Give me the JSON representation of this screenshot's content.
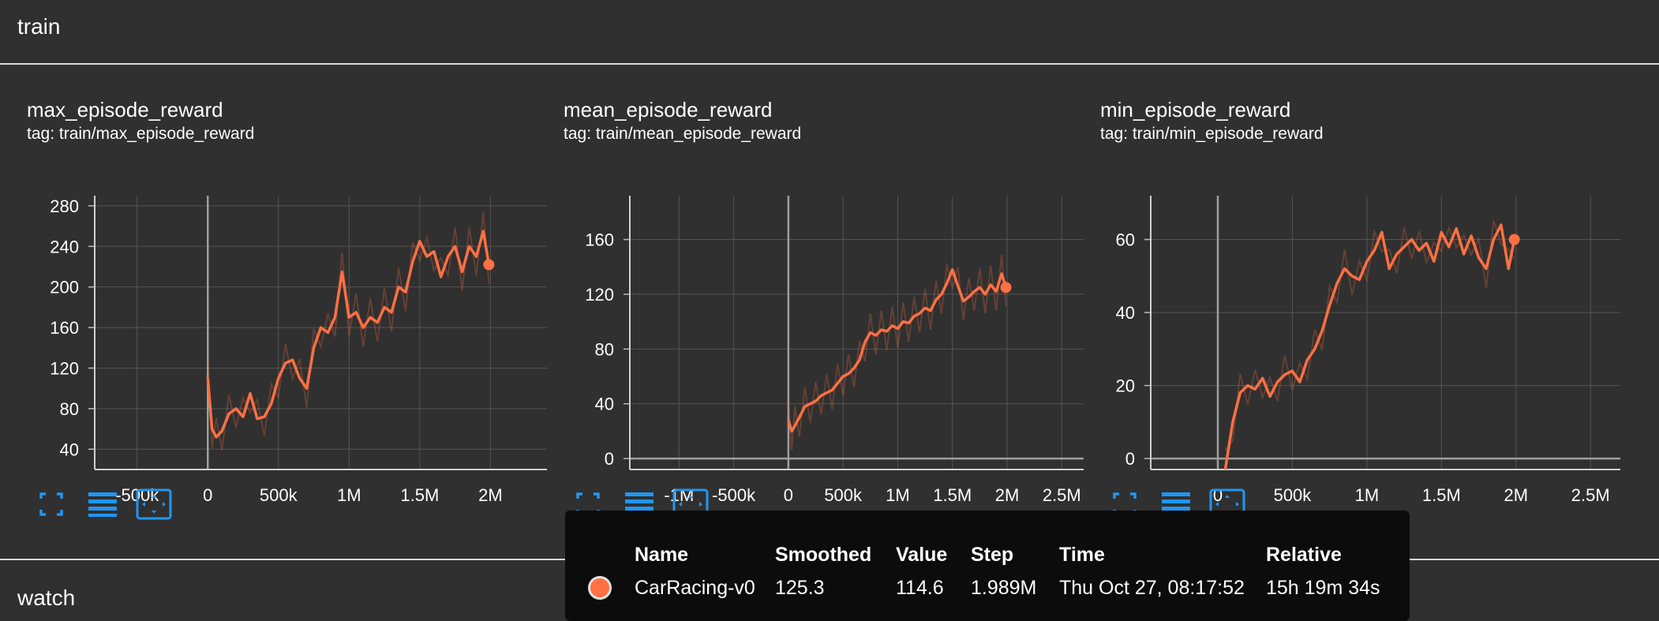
{
  "groups": {
    "train": {
      "label": "train"
    },
    "watch": {
      "label": "watch"
    }
  },
  "colors": {
    "background": "#303030",
    "accent": "#ff7043",
    "icon_blue": "#2196f3",
    "tooltip_bg": "#0c0c0c"
  },
  "cards": [
    {
      "title": "max_episode_reward",
      "tag": "tag: train/max_episode_reward"
    },
    {
      "title": "mean_episode_reward",
      "tag": "tag: train/mean_episode_reward"
    },
    {
      "title": "min_episode_reward",
      "tag": "tag: train/min_episode_reward"
    }
  ],
  "toolbar_icons": [
    "fullscreen-icon",
    "data-table-icon",
    "fit-domain-icon"
  ],
  "chart_data": [
    {
      "type": "line",
      "title": "max_episode_reward",
      "xlim": [
        -800000,
        2400000
      ],
      "ylim": [
        20,
        290
      ],
      "xticks": [
        -500000,
        0,
        500000,
        1000000,
        1500000,
        2000000
      ],
      "xtick_labels": [
        "-500k",
        "0",
        "500k",
        "1M",
        "1.5M",
        "2M"
      ],
      "yticks": [
        40,
        80,
        120,
        160,
        200,
        240,
        280
      ],
      "ytick_labels": [
        "40",
        "80",
        "120",
        "160",
        "200",
        "240",
        "280"
      ],
      "grid": true,
      "series": [
        {
          "x": [
            0,
            30000,
            60000,
            100000,
            150000,
            200000,
            250000,
            300000,
            350000,
            400000,
            450000,
            500000,
            550000,
            600000,
            650000,
            700000,
            750000,
            800000,
            850000,
            900000,
            950000,
            1000000,
            1050000,
            1100000,
            1150000,
            1200000,
            1250000,
            1300000,
            1350000,
            1400000,
            1450000,
            1500000,
            1550000,
            1600000,
            1650000,
            1700000,
            1750000,
            1800000,
            1850000,
            1900000,
            1950000,
            1989000
          ],
          "y": [
            110,
            60,
            52,
            58,
            75,
            80,
            72,
            95,
            70,
            72,
            85,
            110,
            125,
            128,
            110,
            100,
            140,
            160,
            155,
            170,
            215,
            170,
            175,
            160,
            170,
            165,
            180,
            175,
            200,
            195,
            225,
            245,
            230,
            235,
            210,
            230,
            240,
            215,
            240,
            230,
            255,
            222
          ]
        }
      ]
    },
    {
      "type": "line",
      "title": "mean_episode_reward",
      "xlim": [
        -1450000,
        2700000
      ],
      "ylim": [
        -8,
        192
      ],
      "xticks": [
        -1000000,
        -500000,
        0,
        500000,
        1000000,
        1500000,
        2000000,
        2500000
      ],
      "xtick_labels": [
        "-1M",
        "-500k",
        "0",
        "500k",
        "1M",
        "1.5M",
        "2M",
        "2.5M"
      ],
      "yticks": [
        0,
        40,
        80,
        120,
        160
      ],
      "ytick_labels": [
        "0",
        "40",
        "80",
        "120",
        "160"
      ],
      "grid": true,
      "series": [
        {
          "x": [
            0,
            30000,
            60000,
            100000,
            150000,
            200000,
            250000,
            300000,
            350000,
            400000,
            450000,
            500000,
            550000,
            600000,
            650000,
            700000,
            750000,
            800000,
            850000,
            900000,
            950000,
            1000000,
            1050000,
            1100000,
            1150000,
            1200000,
            1250000,
            1300000,
            1350000,
            1400000,
            1450000,
            1500000,
            1550000,
            1600000,
            1650000,
            1700000,
            1750000,
            1800000,
            1850000,
            1900000,
            1950000,
            1989000
          ],
          "y": [
            28,
            20,
            24,
            30,
            38,
            40,
            42,
            46,
            48,
            50,
            55,
            60,
            62,
            66,
            72,
            85,
            92,
            90,
            94,
            93,
            97,
            95,
            100,
            99,
            104,
            106,
            110,
            108,
            116,
            120,
            128,
            138,
            126,
            115,
            118,
            122,
            125,
            120,
            127,
            122,
            135,
            125
          ]
        }
      ]
    },
    {
      "type": "line",
      "title": "min_episode_reward",
      "xlim": [
        -450000,
        2700000
      ],
      "ylim": [
        -3,
        72
      ],
      "xticks": [
        0,
        500000,
        1000000,
        1500000,
        2000000,
        2500000
      ],
      "xtick_labels": [
        "0",
        "500k",
        "1M",
        "1.5M",
        "2M",
        "2.5M"
      ],
      "yticks": [
        0,
        20,
        40,
        60
      ],
      "ytick_labels": [
        "0",
        "20",
        "40",
        "60"
      ],
      "grid": true,
      "series": [
        {
          "x": [
            50000,
            100000,
            150000,
            200000,
            250000,
            300000,
            350000,
            400000,
            450000,
            500000,
            550000,
            600000,
            650000,
            700000,
            750000,
            800000,
            850000,
            900000,
            950000,
            1000000,
            1050000,
            1100000,
            1150000,
            1200000,
            1250000,
            1300000,
            1350000,
            1400000,
            1450000,
            1500000,
            1550000,
            1600000,
            1650000,
            1700000,
            1750000,
            1800000,
            1850000,
            1900000,
            1950000,
            1989000
          ],
          "y": [
            -3,
            10,
            18,
            20,
            19,
            22,
            17,
            21,
            23,
            24,
            21,
            27,
            30,
            35,
            42,
            48,
            52,
            50,
            49,
            54,
            57,
            62,
            52,
            56,
            58,
            60,
            57,
            59,
            54,
            62,
            58,
            63,
            56,
            61,
            55,
            52,
            60,
            64,
            52,
            60
          ]
        }
      ]
    }
  ],
  "tooltip": {
    "headers": {
      "name": "Name",
      "smoothed": "Smoothed",
      "value": "Value",
      "step": "Step",
      "time": "Time",
      "relative": "Relative"
    },
    "row": {
      "name": "CarRacing-v0",
      "smoothed": "125.3",
      "value": "114.6",
      "step": "1.989M",
      "time": "Thu Oct 27, 08:17:52",
      "relative": "15h 19m 34s"
    }
  }
}
